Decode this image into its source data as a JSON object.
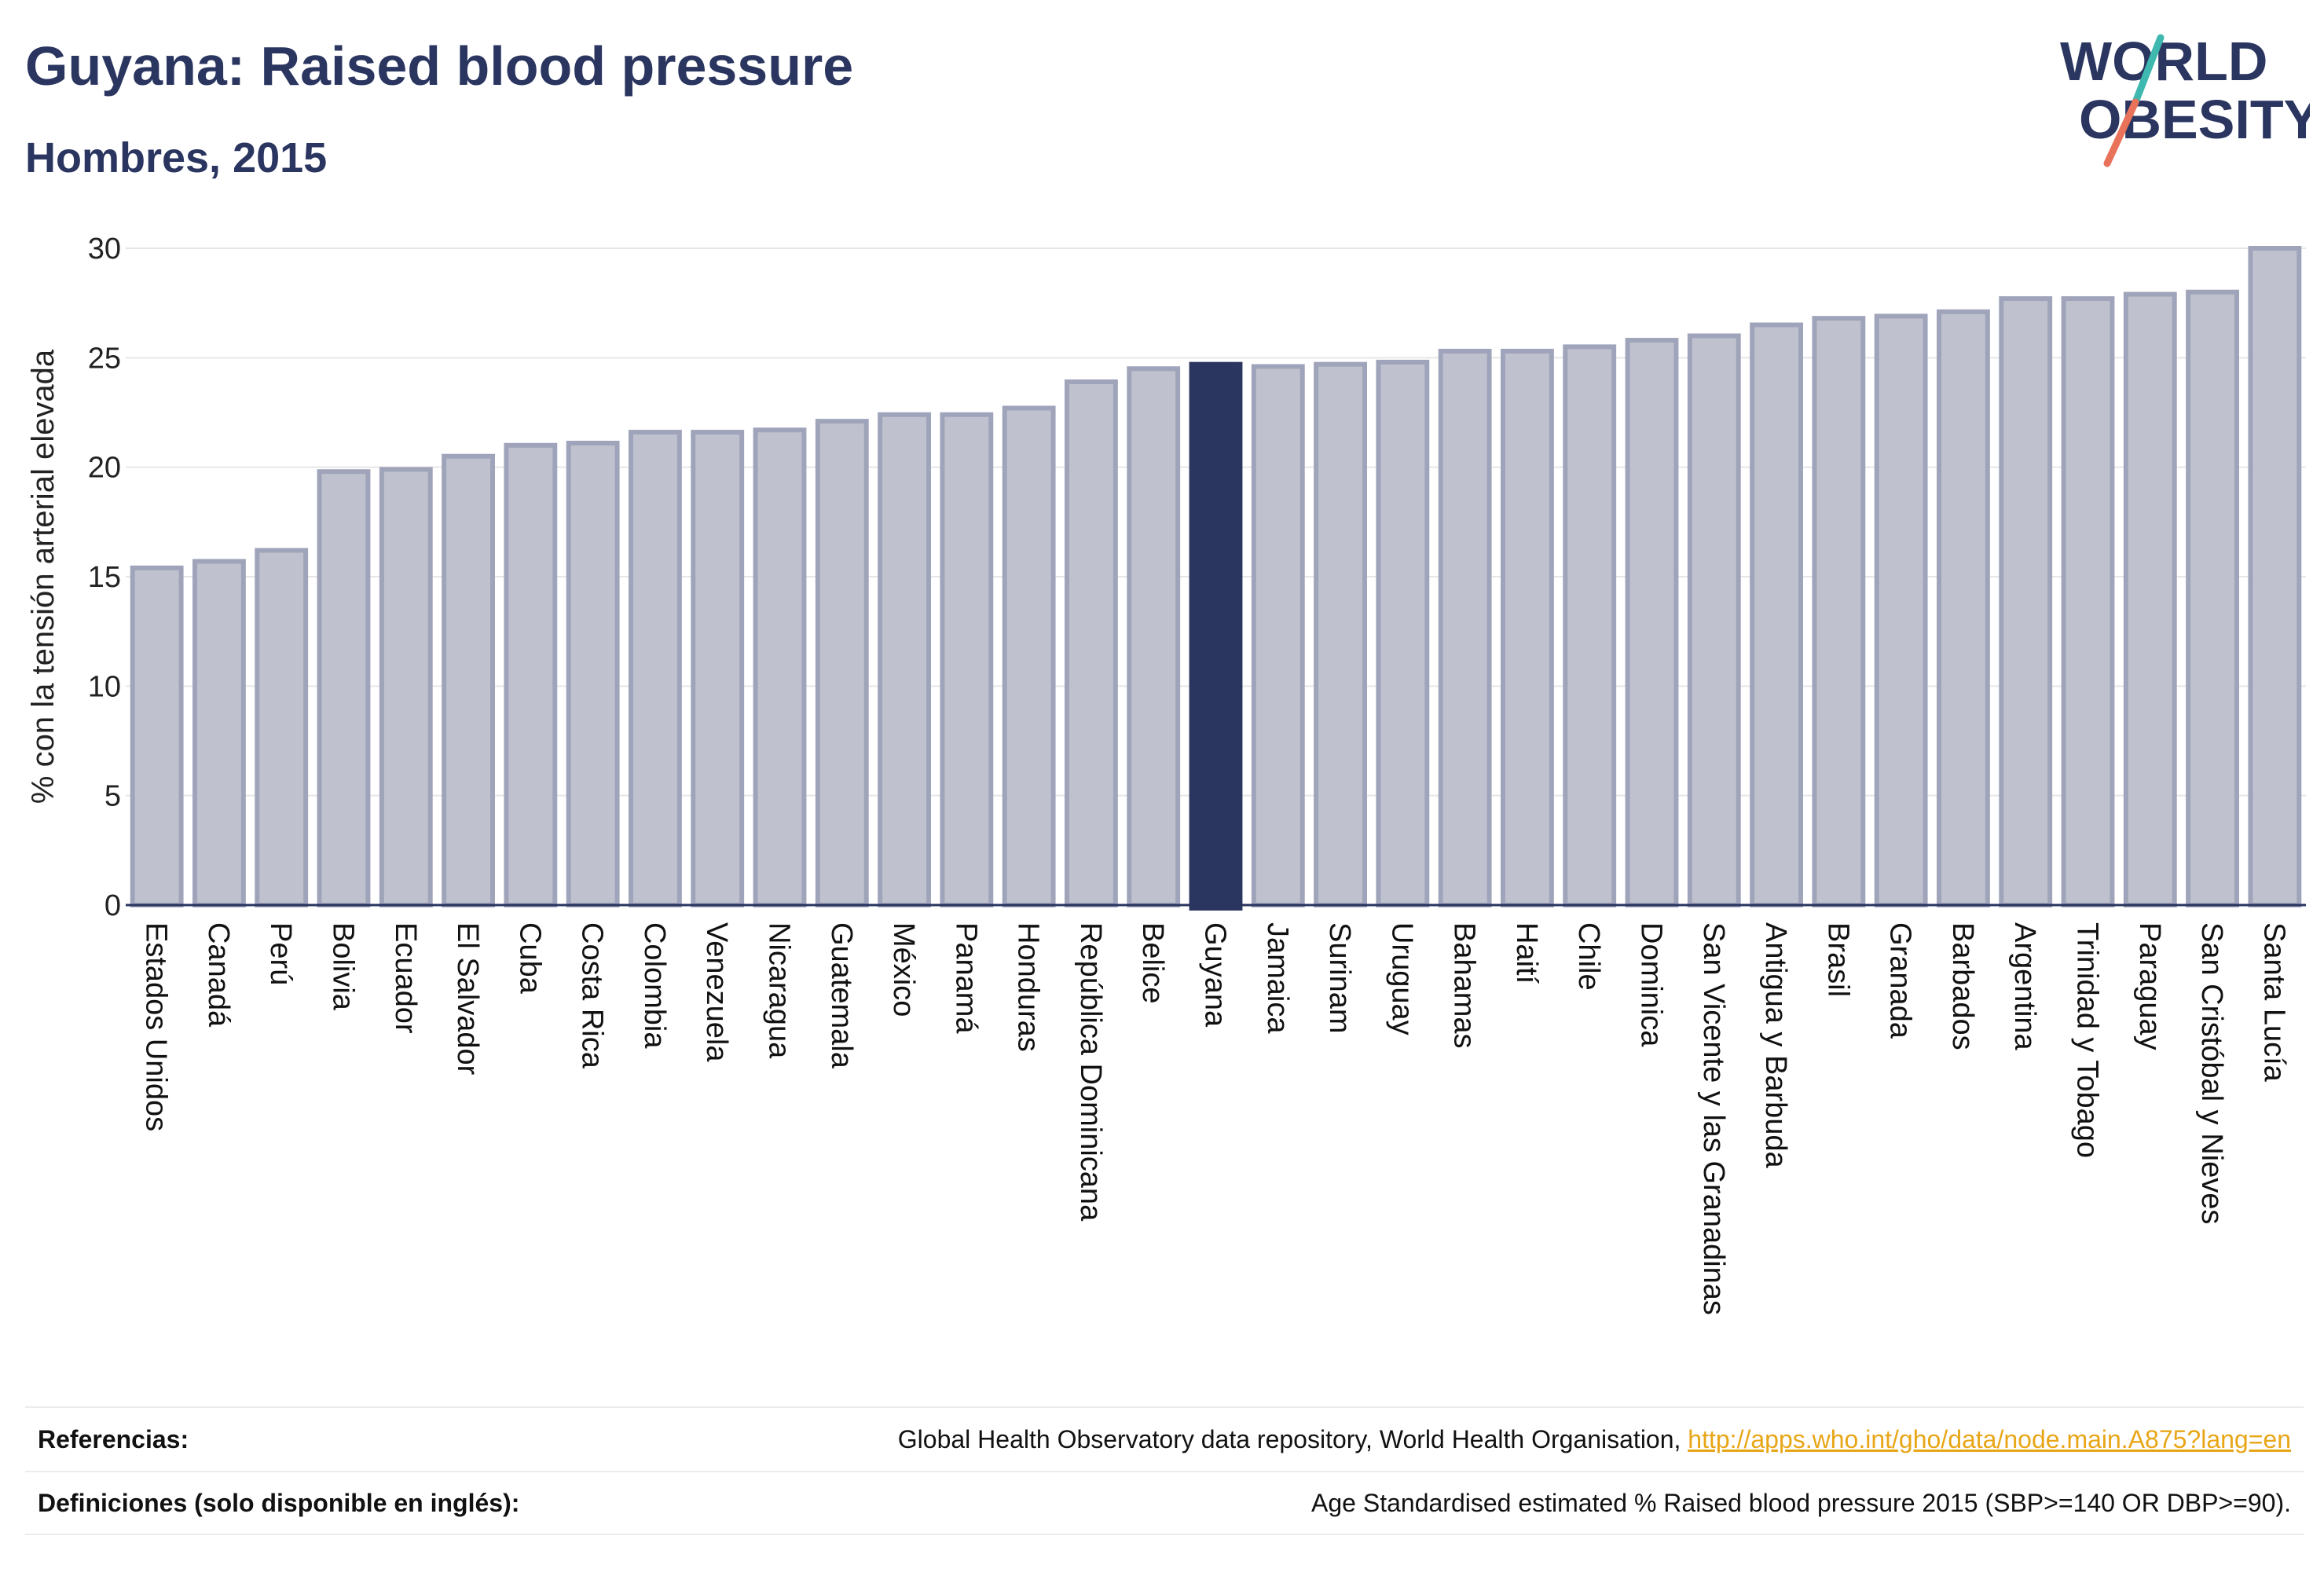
{
  "header": {
    "title": "Guyana: Raised blood pressure",
    "subtitle": "Hombres, 2015"
  },
  "logo": {
    "line1": "WORLD",
    "line2": "OBESITY",
    "colors": {
      "text": "#2a3560",
      "slash_teal": "#3fb8b0",
      "slash_coral": "#e8735a"
    }
  },
  "chart_data": {
    "type": "bar",
    "title": "",
    "xlabel": "",
    "ylabel": "% con la tensión arterial elevada",
    "ylim": [
      0,
      30
    ],
    "yticks": [
      0,
      5,
      10,
      15,
      20,
      25,
      30
    ],
    "grid": true,
    "highlight": "Guyana",
    "colors": {
      "bar": "#bfc2ce",
      "bar_edge": "#9fa4ba",
      "highlight": "#2a3560",
      "grid": "#e6e6e6"
    },
    "categories": [
      "Estados Unidos",
      "Canadá",
      "Perú",
      "Bolivia",
      "Ecuador",
      "El Salvador",
      "Cuba",
      "Costa Rica",
      "Colombia",
      "Venezuela",
      "Nicaragua",
      "Guatemala",
      "México",
      "Panamá",
      "Honduras",
      "República Dominicana",
      "Belice",
      "Guyana",
      "Jamaica",
      "Surinam",
      "Uruguay",
      "Bahamas",
      "Haití",
      "Chile",
      "Dominica",
      "San Vicente y las Granadinas",
      "Antigua y Barbuda",
      "Brasil",
      "Granada",
      "Barbados",
      "Argentina",
      "Trinidad y Tobago",
      "Paraguay",
      "San Cristóbal y Nieves",
      "Santa Lucía"
    ],
    "values": [
      15.4,
      15.7,
      16.2,
      19.8,
      19.9,
      20.5,
      21.0,
      21.1,
      21.6,
      21.6,
      21.7,
      22.1,
      22.4,
      22.4,
      22.7,
      23.9,
      24.5,
      24.7,
      24.6,
      24.7,
      24.8,
      25.3,
      25.3,
      25.5,
      25.8,
      26.0,
      26.5,
      26.8,
      26.9,
      27.1,
      27.7,
      27.7,
      27.9,
      28.0,
      30.0
    ]
  },
  "footer": {
    "references_label": "Referencias:",
    "references_text": "Global Health Observatory data repository, World Health Organisation, ",
    "references_link": "http://apps.who.int/gho/data/node.main.A875?lang=en",
    "definitions_label": "Definiciones (solo disponible en inglés):",
    "definitions_text": "Age Standardised estimated % Raised blood pressure 2015 (SBP>=140 OR DBP>=90)."
  }
}
